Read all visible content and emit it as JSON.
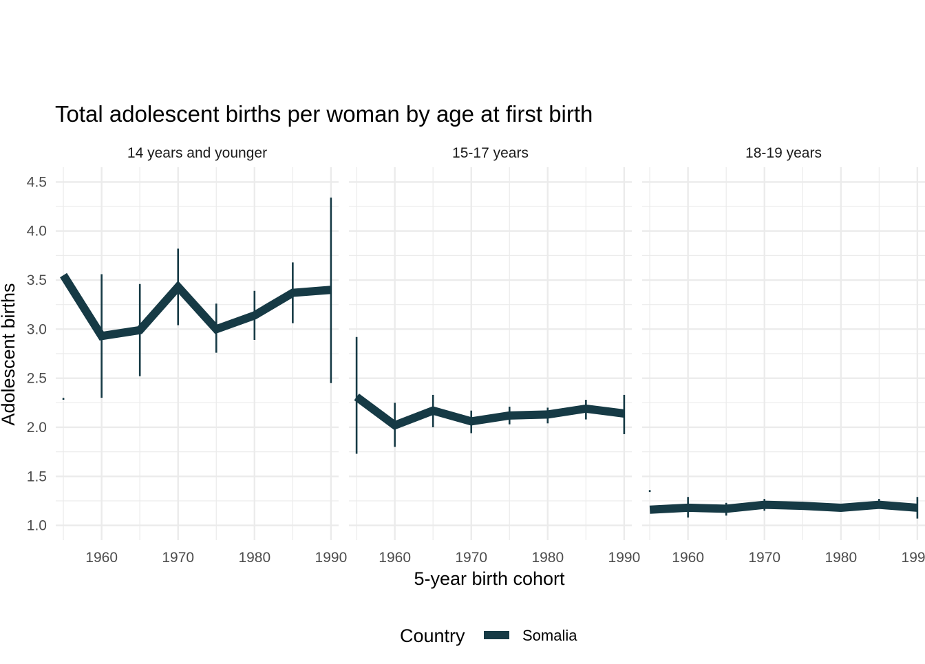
{
  "chart_data": {
    "type": "line",
    "title": "Total adolescent births per woman by age at first birth",
    "xlabel": "5-year birth cohort",
    "ylabel": "Adolescent births",
    "ylim": [
      0.85,
      4.65
    ],
    "xlim": [
      1954,
      1991
    ],
    "y_ticks": [
      1.0,
      1.5,
      2.0,
      2.5,
      3.0,
      3.5,
      4.0,
      4.5
    ],
    "y_tick_labels": [
      "1.0",
      "1.5",
      "2.0",
      "2.5",
      "3.0",
      "3.5",
      "4.0",
      "4.5"
    ],
    "x_ticks": [
      1960,
      1970,
      1980,
      1990
    ],
    "x_tick_labels": [
      "1960",
      "1970",
      "1980",
      "1990"
    ],
    "legend": {
      "title": "Country",
      "position": "bottom",
      "entries": [
        "Somalia"
      ]
    },
    "colors": {
      "series": "#163a45",
      "grid": "#ebebeb",
      "text": "#4d4d4d"
    },
    "grid": true,
    "panels": [
      {
        "label": "14 years and younger",
        "series": [
          {
            "name": "Somalia",
            "x": [
              1955,
              1960,
              1965,
              1970,
              1975,
              1980,
              1985,
              1990
            ],
            "values": [
              3.55,
              2.93,
              2.99,
              3.43,
              3.0,
              3.14,
              3.37,
              3.4
            ],
            "err_low": [
              2.28,
              2.3,
              2.52,
              3.04,
              2.76,
              2.89,
              3.06,
              2.45
            ],
            "err_high": [
              2.3,
              3.56,
              3.46,
              3.82,
              3.26,
              3.39,
              3.68,
              4.34
            ]
          }
        ]
      },
      {
        "label": "15-17 years",
        "series": [
          {
            "name": "Somalia",
            "x": [
              1955,
              1960,
              1965,
              1970,
              1975,
              1980,
              1985,
              1990
            ],
            "values": [
              2.31,
              2.02,
              2.17,
              2.06,
              2.12,
              2.13,
              2.19,
              2.14
            ],
            "err_low": [
              1.73,
              1.8,
              2.0,
              1.94,
              2.03,
              2.04,
              2.08,
              1.93
            ],
            "err_high": [
              2.92,
              2.25,
              2.33,
              2.17,
              2.21,
              2.2,
              2.28,
              2.33
            ]
          }
        ]
      },
      {
        "label": "18-19 years",
        "series": [
          {
            "name": "Somalia",
            "x": [
              1955,
              1960,
              1965,
              1970,
              1975,
              1980,
              1985,
              1990
            ],
            "values": [
              1.16,
              1.18,
              1.17,
              1.21,
              1.2,
              1.18,
              1.21,
              1.18
            ],
            "err_low": [
              1.34,
              1.08,
              1.1,
              1.15,
              1.16,
              1.14,
              1.17,
              1.07
            ],
            "err_high": [
              1.36,
              1.29,
              1.23,
              1.27,
              1.24,
              1.22,
              1.27,
              1.29
            ]
          }
        ]
      }
    ]
  }
}
